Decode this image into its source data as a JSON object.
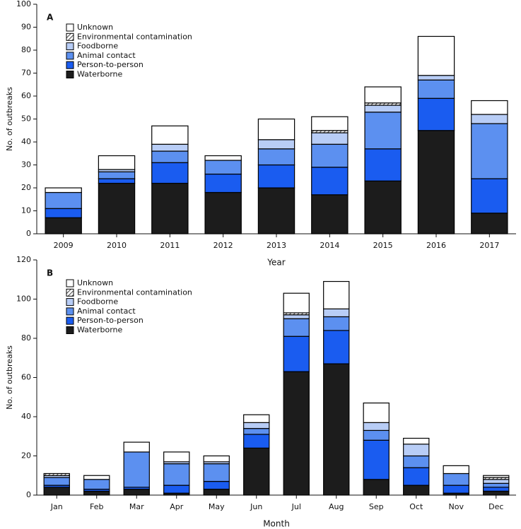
{
  "chart_data": [
    {
      "type": "stacked_bar",
      "panel": "A",
      "x_label": "Year",
      "y_label": "No. of outbreaks",
      "categories": [
        "2009",
        "2010",
        "2011",
        "2012",
        "2013",
        "2014",
        "2015",
        "2016",
        "2017"
      ],
      "ylim": [
        0,
        100
      ],
      "yticks": [
        0,
        10,
        20,
        30,
        40,
        50,
        60,
        70,
        80,
        90,
        100
      ],
      "series": [
        {
          "name": "Waterborne",
          "color": "#1c1c1c",
          "values": [
            7,
            22,
            22,
            18,
            20,
            17,
            23,
            45,
            9
          ]
        },
        {
          "name": "Person-to-person",
          "color": "#1a5cf0",
          "values": [
            4,
            2,
            9,
            8,
            10,
            12,
            14,
            14,
            15
          ]
        },
        {
          "name": "Animal contact",
          "color": "#5c90f0",
          "values": [
            7,
            3,
            5,
            6,
            7,
            10,
            16,
            8,
            24
          ]
        },
        {
          "name": "Foodborne",
          "color": "#b8cdf6",
          "values": [
            0,
            1,
            3,
            0,
            4,
            5,
            3,
            2,
            4
          ]
        },
        {
          "name": "Environmental contamination",
          "color": "#444444",
          "pattern": "hatch",
          "values": [
            0,
            0,
            0,
            0,
            0,
            1,
            1,
            0,
            0
          ]
        },
        {
          "name": "Unknown",
          "color": "#ffffff",
          "values": [
            2,
            6,
            8,
            2,
            9,
            6,
            7,
            17,
            6
          ]
        }
      ]
    },
    {
      "type": "stacked_bar",
      "panel": "B",
      "x_label": "Month",
      "y_label": "No. of outbreaks",
      "categories": [
        "Jan",
        "Feb",
        "Mar",
        "Apr",
        "May",
        "Jun",
        "Jul",
        "Aug",
        "Sep",
        "Oct",
        "Nov",
        "Dec"
      ],
      "ylim": [
        0,
        120
      ],
      "yticks": [
        0,
        20,
        40,
        60,
        80,
        100,
        120
      ],
      "series": [
        {
          "name": "Waterborne",
          "color": "#1c1c1c",
          "values": [
            4,
            2,
            3,
            1,
            3,
            24,
            63,
            67,
            8,
            5,
            1,
            2
          ]
        },
        {
          "name": "Person-to-person",
          "color": "#1a5cf0",
          "values": [
            1,
            1,
            1,
            4,
            4,
            7,
            18,
            17,
            20,
            9,
            4,
            2
          ]
        },
        {
          "name": "Animal contact",
          "color": "#5c90f0",
          "values": [
            4,
            5,
            18,
            11,
            9,
            3,
            9,
            7,
            5,
            6,
            6,
            2
          ]
        },
        {
          "name": "Foodborne",
          "color": "#b8cdf6",
          "values": [
            1,
            0,
            0,
            1,
            1,
            3,
            2,
            4,
            4,
            6,
            0,
            2
          ]
        },
        {
          "name": "Environmental contamination",
          "color": "#444444",
          "pattern": "hatch",
          "values": [
            1,
            0,
            0,
            0,
            0,
            0,
            1,
            0,
            0,
            0,
            0,
            1
          ]
        },
        {
          "name": "Unknown",
          "color": "#ffffff",
          "values": [
            0,
            2,
            5,
            5,
            3,
            4,
            10,
            14,
            10,
            3,
            4,
            1
          ]
        }
      ]
    }
  ]
}
